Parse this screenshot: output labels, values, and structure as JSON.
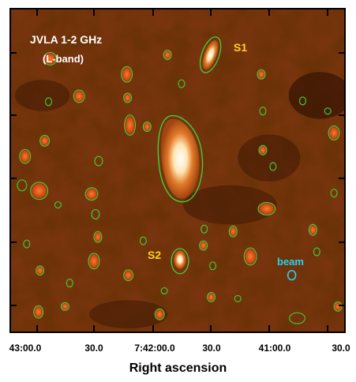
{
  "image": {
    "labels": {
      "title_line1": "JVLA 1-2 GHz",
      "title_line2": "(L-band)",
      "source1": "S1",
      "source2": "S2",
      "beam": "beam"
    },
    "colors": {
      "background": "#6a2a08",
      "contour": "#3cd23c",
      "source_label": "#ffd21e",
      "beam_label": "#28d2f0",
      "title_text": "#ffffff"
    }
  },
  "axis": {
    "x_ticks": [
      "43:00.0",
      "30.0",
      "7:42:00.0",
      "30.0",
      "41:00.0",
      "30.0"
    ],
    "x_label": "Right ascension"
  }
}
